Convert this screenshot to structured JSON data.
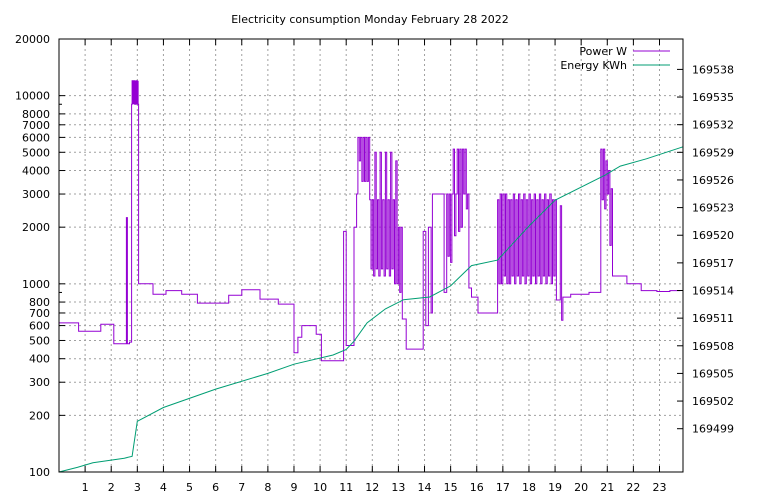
{
  "chart_data": {
    "type": "line",
    "title": "Electricity consumption Monday February 28 2022",
    "xlabel": "",
    "ylabel": "",
    "y2label": "",
    "x_ticks": [
      1,
      2,
      3,
      4,
      5,
      6,
      7,
      8,
      9,
      10,
      11,
      12,
      13,
      14,
      15,
      16,
      17,
      18,
      19,
      20,
      21,
      22,
      23
    ],
    "xlim": [
      0,
      23.9
    ],
    "y_scale": "log",
    "ylim": [
      100,
      20000
    ],
    "y_ticks": [
      {
        "v": 100,
        "label": "100"
      },
      {
        "v": 200,
        "label": "200"
      },
      {
        "v": 300,
        "label": "300"
      },
      {
        "v": 400,
        "label": "400"
      },
      {
        "v": 500,
        "label": "500"
      },
      {
        "v": 600,
        "label": "600"
      },
      {
        "v": 700,
        "label": "700"
      },
      {
        "v": 800,
        "label": "800"
      },
      {
        "v": 1000,
        "label": "1000"
      },
      {
        "v": 2000,
        "label": "2000"
      },
      {
        "v": 3000,
        "label": "3000"
      },
      {
        "v": 4000,
        "label": "4000"
      },
      {
        "v": 5000,
        "label": "5000"
      },
      {
        "v": 6000,
        "label": "6000"
      },
      {
        "v": 7000,
        "label": "7000"
      },
      {
        "v": 8000,
        "label": "8000"
      },
      {
        "v": 10000,
        "label": "10000"
      },
      {
        "v": 20000,
        "label": "20000"
      }
    ],
    "y2lim": [
      169494.3,
      169541.3
    ],
    "y2_ticks": [
      169499,
      169502,
      169505,
      169508,
      169511,
      169514,
      169517,
      169520,
      169523,
      169526,
      169529,
      169532,
      169535,
      169538
    ],
    "grid": true,
    "legend": "top-right",
    "series": [
      {
        "name": "Power W",
        "axis": "y",
        "color": "#9400d3",
        "style": "step",
        "points": [
          [
            0,
            620
          ],
          [
            0.75,
            620
          ],
          [
            0.75,
            560
          ],
          [
            1.6,
            560
          ],
          [
            1.6,
            610
          ],
          [
            2.1,
            610
          ],
          [
            2.1,
            480
          ],
          [
            2.55,
            480
          ],
          [
            2.58,
            2250
          ],
          [
            2.62,
            480
          ],
          [
            2.7,
            490
          ],
          [
            2.78,
            9000
          ],
          [
            2.8,
            12000
          ],
          [
            2.9,
            9000
          ],
          [
            2.95,
            12000
          ],
          [
            3.0,
            9000
          ],
          [
            3.05,
            1000
          ],
          [
            3.6,
            1000
          ],
          [
            3.6,
            880
          ],
          [
            4.1,
            880
          ],
          [
            4.1,
            920
          ],
          [
            4.7,
            920
          ],
          [
            4.7,
            880
          ],
          [
            5.3,
            880
          ],
          [
            5.3,
            790
          ],
          [
            6.5,
            790
          ],
          [
            6.5,
            870
          ],
          [
            7.0,
            870
          ],
          [
            7.0,
            930
          ],
          [
            7.7,
            930
          ],
          [
            7.7,
            830
          ],
          [
            8.4,
            830
          ],
          [
            8.4,
            780
          ],
          [
            9.0,
            780
          ],
          [
            9.0,
            430
          ],
          [
            9.15,
            430
          ],
          [
            9.15,
            520
          ],
          [
            9.3,
            520
          ],
          [
            9.3,
            600
          ],
          [
            9.85,
            600
          ],
          [
            9.85,
            540
          ],
          [
            10.05,
            540
          ],
          [
            10.05,
            390
          ],
          [
            10.9,
            390
          ],
          [
            10.9,
            1900
          ],
          [
            11.0,
            1850
          ],
          [
            11.0,
            470
          ],
          [
            11.3,
            470
          ],
          [
            11.3,
            2000
          ],
          [
            11.4,
            3000
          ],
          [
            11.45,
            6000
          ],
          [
            11.5,
            4500
          ],
          [
            11.55,
            6000
          ],
          [
            11.6,
            3500
          ],
          [
            11.65,
            6000
          ],
          [
            11.7,
            3500
          ],
          [
            11.75,
            6000
          ],
          [
            11.8,
            3500
          ],
          [
            11.85,
            6000
          ],
          [
            11.9,
            2800
          ],
          [
            11.95,
            1200
          ],
          [
            12.0,
            2800
          ],
          [
            12.05,
            1100
          ],
          [
            12.1,
            5000
          ],
          [
            12.15,
            1200
          ],
          [
            12.2,
            2800
          ],
          [
            12.25,
            1100
          ],
          [
            12.3,
            5000
          ],
          [
            12.35,
            1200
          ],
          [
            12.4,
            2800
          ],
          [
            12.45,
            1100
          ],
          [
            12.5,
            5000
          ],
          [
            12.55,
            1200
          ],
          [
            12.6,
            2800
          ],
          [
            12.65,
            1100
          ],
          [
            12.7,
            5000
          ],
          [
            12.75,
            1200
          ],
          [
            12.8,
            2800
          ],
          [
            12.85,
            1000
          ],
          [
            12.9,
            4500
          ],
          [
            12.95,
            1000
          ],
          [
            13.0,
            2000
          ],
          [
            13.05,
            900
          ],
          [
            13.1,
            2000
          ],
          [
            13.15,
            650
          ],
          [
            13.3,
            450
          ],
          [
            13.5,
            450
          ],
          [
            13.6,
            450
          ],
          [
            13.95,
            450
          ],
          [
            13.95,
            1900
          ],
          [
            14.05,
            600
          ],
          [
            14.15,
            2000
          ],
          [
            14.25,
            700
          ],
          [
            14.3,
            3000
          ],
          [
            14.75,
            3000
          ],
          [
            14.75,
            900
          ],
          [
            14.85,
            3000
          ],
          [
            14.9,
            1400
          ],
          [
            14.95,
            3000
          ],
          [
            15.0,
            1300
          ],
          [
            15.05,
            3000
          ],
          [
            15.1,
            5200
          ],
          [
            15.15,
            1800
          ],
          [
            15.2,
            3000
          ],
          [
            15.25,
            5200
          ],
          [
            15.3,
            1900
          ],
          [
            15.35,
            5200
          ],
          [
            15.4,
            2000
          ],
          [
            15.45,
            5200
          ],
          [
            15.5,
            3000
          ],
          [
            15.55,
            5200
          ],
          [
            15.6,
            2500
          ],
          [
            15.65,
            3000
          ],
          [
            15.7,
            950
          ],
          [
            15.8,
            850
          ],
          [
            16.0,
            850
          ],
          [
            16.05,
            700
          ],
          [
            16.8,
            700
          ],
          [
            16.8,
            2800
          ],
          [
            16.85,
            1000
          ],
          [
            16.9,
            3000
          ],
          [
            16.95,
            1000
          ],
          [
            17.0,
            3000
          ],
          [
            17.05,
            1100
          ],
          [
            17.1,
            3000
          ],
          [
            17.15,
            1000
          ],
          [
            17.2,
            2800
          ],
          [
            17.25,
            1000
          ],
          [
            17.3,
            2800
          ],
          [
            17.35,
            1100
          ],
          [
            17.4,
            3000
          ],
          [
            17.45,
            1000
          ],
          [
            17.5,
            2800
          ],
          [
            17.55,
            1100
          ],
          [
            17.6,
            3000
          ],
          [
            17.65,
            1000
          ],
          [
            17.7,
            2800
          ],
          [
            17.75,
            1100
          ],
          [
            17.8,
            3000
          ],
          [
            17.85,
            1000
          ],
          [
            17.9,
            2800
          ],
          [
            17.95,
            1100
          ],
          [
            18.0,
            3000
          ],
          [
            18.05,
            1000
          ],
          [
            18.1,
            2800
          ],
          [
            18.15,
            1100
          ],
          [
            18.2,
            3000
          ],
          [
            18.25,
            1000
          ],
          [
            18.3,
            2800
          ],
          [
            18.35,
            1100
          ],
          [
            18.4,
            3000
          ],
          [
            18.45,
            1000
          ],
          [
            18.5,
            2800
          ],
          [
            18.55,
            1100
          ],
          [
            18.6,
            3000
          ],
          [
            18.65,
            1000
          ],
          [
            18.7,
            2800
          ],
          [
            18.75,
            1100
          ],
          [
            18.8,
            3000
          ],
          [
            18.85,
            1000
          ],
          [
            18.9,
            2800
          ],
          [
            18.95,
            1100
          ],
          [
            19.0,
            2800
          ],
          [
            19.05,
            820
          ],
          [
            19.15,
            820
          ],
          [
            19.2,
            2600
          ],
          [
            19.25,
            640
          ],
          [
            19.3,
            850
          ],
          [
            19.6,
            850
          ],
          [
            19.6,
            880
          ],
          [
            20.3,
            880
          ],
          [
            20.3,
            900
          ],
          [
            20.75,
            900
          ],
          [
            20.75,
            5200
          ],
          [
            20.8,
            2800
          ],
          [
            20.85,
            5200
          ],
          [
            20.9,
            2500
          ],
          [
            20.95,
            4500
          ],
          [
            21.0,
            3000
          ],
          [
            21.05,
            4000
          ],
          [
            21.1,
            1600
          ],
          [
            21.15,
            3200
          ],
          [
            21.2,
            1100
          ],
          [
            21.75,
            1100
          ],
          [
            21.75,
            1000
          ],
          [
            22.3,
            1000
          ],
          [
            22.3,
            920
          ],
          [
            22.9,
            920
          ],
          [
            22.9,
            910
          ],
          [
            23.4,
            910
          ],
          [
            23.4,
            920
          ],
          [
            23.8,
            920
          ]
        ]
      },
      {
        "name": "Energy KWh",
        "axis": "y2",
        "color": "#009e73",
        "style": "line",
        "points": [
          [
            0,
            169494.3
          ],
          [
            0.7,
            169494.8
          ],
          [
            1.3,
            169495.3
          ],
          [
            2.5,
            169495.8
          ],
          [
            2.8,
            169496.0
          ],
          [
            3.0,
            169499.8
          ],
          [
            4.0,
            169501.3
          ],
          [
            6.0,
            169503.3
          ],
          [
            8.0,
            169505.0
          ],
          [
            9.0,
            169506.0
          ],
          [
            10.5,
            169507.0
          ],
          [
            11.0,
            169507.6
          ],
          [
            11.3,
            169508.5
          ],
          [
            11.8,
            169510.5
          ],
          [
            12.5,
            169512.0
          ],
          [
            13.2,
            169513.0
          ],
          [
            14.2,
            169513.3
          ],
          [
            15.0,
            169514.5
          ],
          [
            15.8,
            169516.7
          ],
          [
            16.8,
            169517.3
          ],
          [
            18.0,
            169521.0
          ],
          [
            19.0,
            169523.8
          ],
          [
            20.9,
            169526.5
          ],
          [
            21.5,
            169527.5
          ],
          [
            22.5,
            169528.3
          ],
          [
            23.9,
            169529.6
          ]
        ]
      }
    ]
  }
}
